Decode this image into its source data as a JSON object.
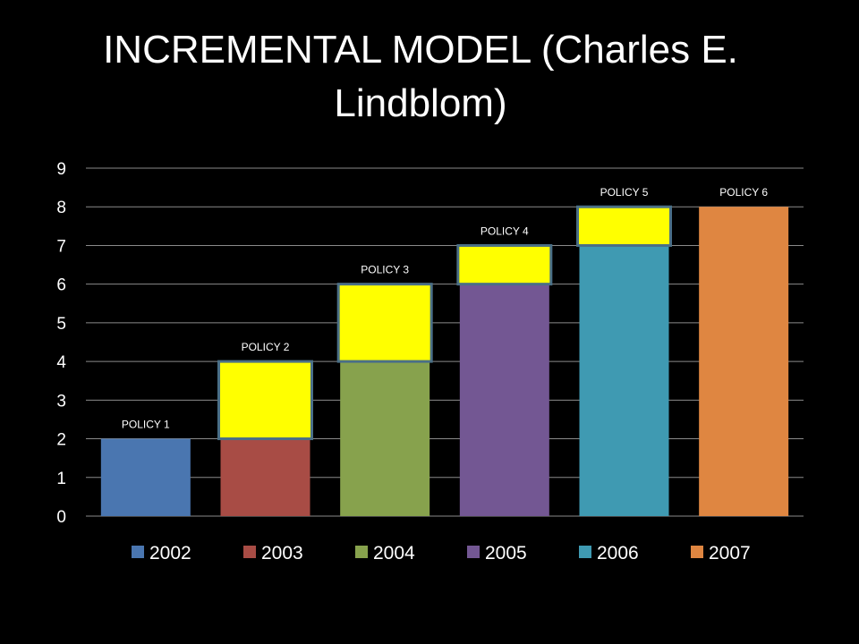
{
  "title": "INCREMENTAL MODEL (Charles E. Lindblom)",
  "chart_data": {
    "type": "bar",
    "stacked": true,
    "title": "INCREMENTAL MODEL (Charles E. Lindblom)",
    "xlabel": "",
    "ylabel": "",
    "ylim": [
      0,
      9
    ],
    "yticks": [
      0,
      1,
      2,
      3,
      4,
      5,
      6,
      7,
      8,
      9
    ],
    "grid": true,
    "legend_position": "bottom",
    "categories": [
      "2002",
      "2003",
      "2004",
      "2005",
      "2006",
      "2007"
    ],
    "bars": [
      {
        "category": "2002",
        "base": 2,
        "increment": 0,
        "label": "POLICY 1",
        "color": "#4a76b0"
      },
      {
        "category": "2003",
        "base": 2,
        "increment": 2,
        "label": "POLICY 2",
        "color": "#a84c45"
      },
      {
        "category": "2004",
        "base": 4,
        "increment": 2,
        "label": "POLICY 3",
        "color": "#87a24d"
      },
      {
        "category": "2005",
        "base": 6,
        "increment": 1,
        "label": "POLICY 4",
        "color": "#735793"
      },
      {
        "category": "2006",
        "base": 7,
        "increment": 1,
        "label": "POLICY 5",
        "color": "#3f9ab2"
      },
      {
        "category": "2007",
        "base": 8,
        "increment": 0,
        "label": "POLICY 6",
        "color": "#df8641"
      }
    ],
    "increment_color": "#ffff00",
    "increment_border_color": "#4a6f86",
    "legend": [
      {
        "label": "2002",
        "color": "#4a76b0"
      },
      {
        "label": "2003",
        "color": "#a84c45"
      },
      {
        "label": "2004",
        "color": "#87a24d"
      },
      {
        "label": "2005",
        "color": "#735793"
      },
      {
        "label": "2006",
        "color": "#3f9ab2"
      },
      {
        "label": "2007",
        "color": "#df8641"
      }
    ]
  }
}
